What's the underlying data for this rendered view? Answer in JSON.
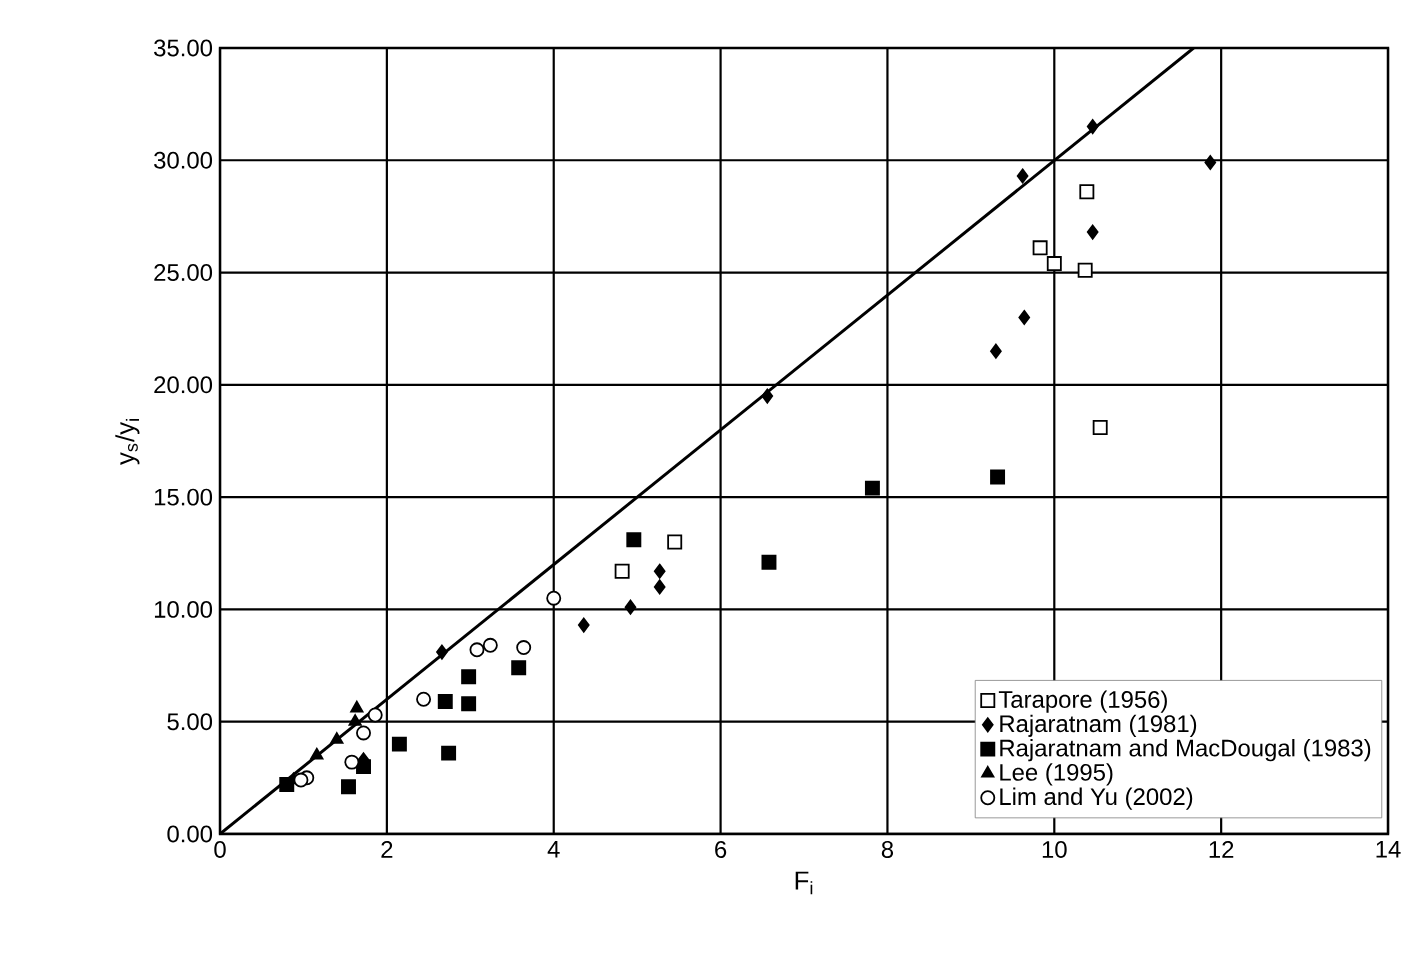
{
  "chart_data": {
    "type": "scatter",
    "xlabel": "F$_{i}$",
    "ylabel": "y$_{s}$/y$_{i}$",
    "xlim": [
      0,
      14
    ],
    "xticks": [
      0,
      2,
      4,
      6,
      8,
      10,
      12,
      14
    ],
    "ylim": [
      0,
      35
    ],
    "yticks": [
      {
        "value": 0,
        "label": "0.00"
      },
      {
        "value": 5,
        "label": "5.00"
      },
      {
        "value": 10,
        "label": "10.00"
      },
      {
        "value": 15,
        "label": "15.00"
      },
      {
        "value": 20,
        "label": "20.00"
      },
      {
        "value": 25,
        "label": "25.00"
      },
      {
        "value": 30,
        "label": "30.00"
      },
      {
        "value": 35,
        "label": "35.00"
      }
    ],
    "grid": true,
    "legend": "bottom right",
    "series": [
      {
        "name": "Tarapore (1956)",
        "color": "#000000",
        "marker": "square",
        "x": [
          10.39,
          9.83,
          10.0,
          10.37,
          10.55,
          5.45,
          4.82
        ],
        "values": [
          28.6,
          26.1,
          25.4,
          25.1,
          18.1,
          13.0,
          11.7
        ]
      },
      {
        "name": "Rajaratnam (1981)",
        "color": "#000000",
        "marker": "diamond",
        "x": [
          10.46,
          9.62,
          11.87,
          10.46,
          9.64,
          9.3,
          6.56,
          5.27,
          5.27,
          4.92,
          4.36,
          2.66,
          1.72
        ],
        "values": [
          31.5,
          29.3,
          29.9,
          26.8,
          23.0,
          21.5,
          19.5,
          11.7,
          11.0,
          10.1,
          9.3,
          8.1,
          3.3
        ]
      },
      {
        "name": "Rajaratnam and MacDougal (1983)",
        "color": "#000000",
        "marker": "square",
        "x": [
          4.96,
          6.58,
          7.82,
          9.32,
          2.98,
          3.58,
          2.7,
          2.98,
          2.15,
          2.74,
          1.72,
          1.54,
          0.8
        ],
        "values": [
          13.1,
          12.1,
          15.4,
          15.9,
          7.0,
          7.4,
          5.9,
          5.8,
          4.0,
          3.6,
          3.0,
          2.1,
          2.2
        ]
      },
      {
        "name": "Lee (1995)",
        "color": "#000000",
        "marker": "triangle",
        "x": [
          0.88,
          1.16,
          1.4,
          1.62,
          1.64
        ],
        "values": [
          2.4,
          3.5,
          4.2,
          5.0,
          5.6
        ]
      },
      {
        "name": "Lim and Yu (2002)",
        "color": "#000000",
        "marker": "circle",
        "x": [
          4.0,
          3.08,
          3.24,
          3.64,
          2.44,
          1.86,
          1.72,
          1.58,
          1.04,
          0.97
        ],
        "values": [
          10.5,
          8.2,
          8.4,
          8.3,
          6.0,
          5.3,
          4.5,
          3.2,
          2.5,
          2.4
        ]
      },
      {
        "type": "line",
        "color": "#000000",
        "marker": "none",
        "x": [
          0,
          11.67
        ],
        "values": [
          0,
          35
        ]
      }
    ]
  }
}
